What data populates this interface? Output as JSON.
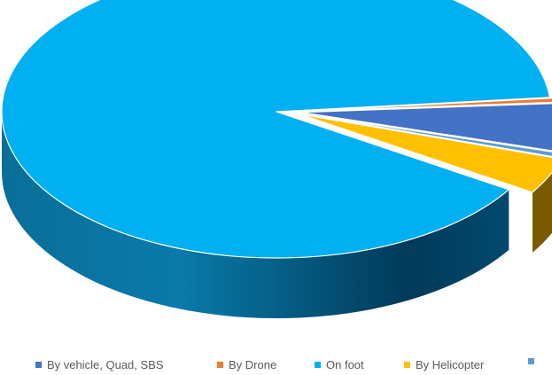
{
  "chart_data": {
    "type": "pie",
    "style": "3d",
    "title": "",
    "categories": [
      "By vehicle, Quad, SBS",
      "By Drone",
      "On foot",
      "By Helicopter",
      ""
    ],
    "values": [
      5.5,
      0.5,
      89.5,
      4.0,
      0.5
    ],
    "colors": [
      "#4472C4",
      "#ED7D31",
      "#00B0F0",
      "#FFC000",
      "#5B9BD5"
    ],
    "side_colors": [
      "#5A3A1C",
      "#5A3A1C",
      "#0C6F99",
      "#7A5A00",
      "#2E5A80"
    ],
    "legend_position": "bottom"
  }
}
